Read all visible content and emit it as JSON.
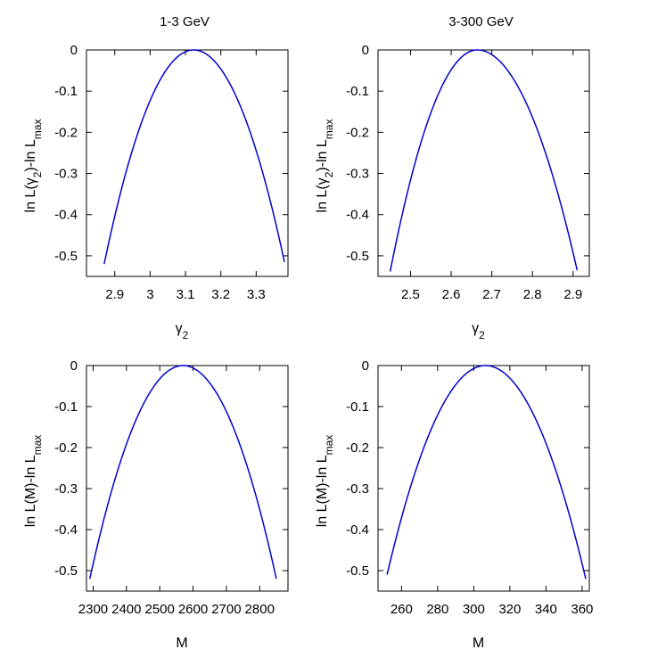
{
  "chart_data": [
    {
      "type": "line",
      "title": "1-3 GeV",
      "xlabel": "γ2",
      "xlabel_main": "γ",
      "xlabel_sub": "2",
      "ylabel_main": "ln L(",
      "ylabel_var": "γ",
      "ylabel_var_sub": "2",
      "ylabel_rest": ")-ln L",
      "ylabel_sub": "max",
      "xlim": [
        2.82,
        3.39
      ],
      "ylim": [
        -0.55,
        0.0
      ],
      "xticks": [
        2.9,
        3.0,
        3.1,
        3.2,
        3.3
      ],
      "xtick_labels": [
        "2.9",
        "3",
        "3.1",
        "3.2",
        "3.3"
      ],
      "yticks": [
        0,
        -0.1,
        -0.2,
        -0.3,
        -0.4,
        -0.5
      ],
      "ytick_labels": [
        "0",
        "-0.1",
        "-0.2",
        "-0.3",
        "-0.4",
        "-0.5"
      ],
      "series": [
        {
          "peak_x": 3.123,
          "peak_y": 0.0,
          "left_x": 2.87,
          "left_y": -0.52,
          "right_x": 3.38,
          "right_y": -0.515
        }
      ]
    },
    {
      "type": "line",
      "title": "3-300 GeV",
      "xlabel": "γ2",
      "xlabel_main": "γ",
      "xlabel_sub": "2",
      "ylabel_main": "ln L(",
      "ylabel_var": "γ",
      "ylabel_var_sub": "2",
      "ylabel_rest": ")-ln L",
      "ylabel_sub": "max",
      "xlim": [
        2.42,
        2.94
      ],
      "ylim": [
        -0.55,
        0.0
      ],
      "xticks": [
        2.5,
        2.6,
        2.7,
        2.8,
        2.9
      ],
      "xtick_labels": [
        "2.5",
        "2.6",
        "2.7",
        "2.8",
        "2.9"
      ],
      "yticks": [
        0,
        -0.1,
        -0.2,
        -0.3,
        -0.4,
        -0.5
      ],
      "ytick_labels": [
        "0",
        "-0.1",
        "-0.2",
        "-0.3",
        "-0.4",
        "-0.5"
      ],
      "series": [
        {
          "peak_x": 2.664,
          "peak_y": 0.0,
          "left_x": 2.45,
          "left_y": -0.538,
          "right_x": 2.91,
          "right_y": -0.535
        }
      ]
    },
    {
      "type": "line",
      "title": "",
      "xlabel": "M",
      "xlabel_main": "M",
      "xlabel_sub": "",
      "ylabel_main": "ln L(",
      "ylabel_var": "M",
      "ylabel_var_sub": "",
      "ylabel_rest": ")-ln L",
      "ylabel_sub": "max",
      "xlim": [
        2280,
        2885
      ],
      "ylim": [
        -0.55,
        0.0
      ],
      "xticks": [
        2300,
        2400,
        2500,
        2600,
        2700,
        2800
      ],
      "xtick_labels": [
        "2300",
        "2400",
        "2500",
        "2600",
        "2700",
        "2800"
      ],
      "yticks": [
        0,
        -0.1,
        -0.2,
        -0.3,
        -0.4,
        -0.5
      ],
      "ytick_labels": [
        "0",
        "-0.1",
        "-0.2",
        "-0.3",
        "-0.4",
        "-0.5"
      ],
      "series": [
        {
          "peak_x": 2570,
          "peak_y": 0.0,
          "left_x": 2290,
          "left_y": -0.52,
          "right_x": 2850,
          "right_y": -0.52
        }
      ]
    },
    {
      "type": "line",
      "title": "",
      "xlabel": "M",
      "xlabel_main": "M",
      "xlabel_sub": "",
      "ylabel_main": "ln L(",
      "ylabel_var": "M",
      "ylabel_var_sub": "",
      "ylabel_rest": ")-ln L",
      "ylabel_sub": "max",
      "xlim": [
        247,
        364
      ],
      "ylim": [
        -0.55,
        0.0
      ],
      "xticks": [
        260,
        280,
        300,
        320,
        340,
        360
      ],
      "xtick_labels": [
        "260",
        "280",
        "300",
        "320",
        "340",
        "360"
      ],
      "yticks": [
        0,
        -0.1,
        -0.2,
        -0.3,
        -0.4,
        -0.5
      ],
      "ytick_labels": [
        "0",
        "-0.1",
        "-0.2",
        "-0.3",
        "-0.4",
        "-0.5"
      ],
      "series": [
        {
          "peak_x": 306.5,
          "peak_y": 0.0,
          "left_x": 252,
          "left_y": -0.51,
          "right_x": 362,
          "right_y": -0.52
        }
      ]
    }
  ],
  "colors": {
    "curve": "#0000d0",
    "axes": "#000000"
  }
}
